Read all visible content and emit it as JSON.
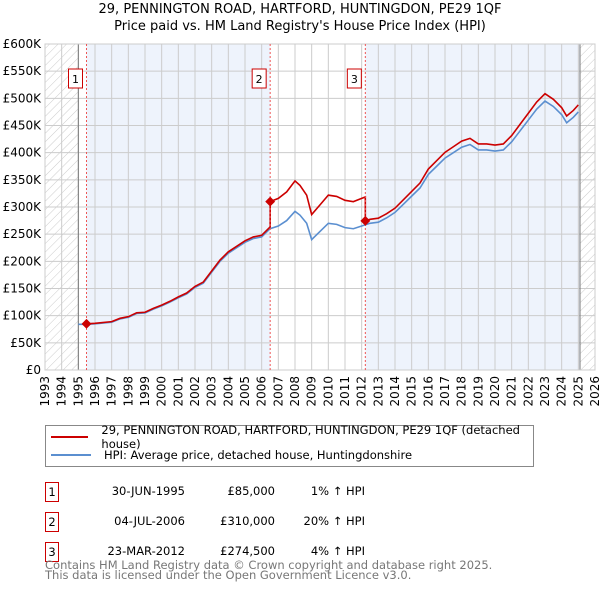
{
  "chart_data": {
    "type": "line",
    "title": "29, PENNINGTON ROAD, HARTFORD, HUNTINGDON, PE29 1QF",
    "subtitle": "Price paid vs. HM Land Registry's House Price Index (HPI)",
    "xlim": [
      1993,
      2026
    ],
    "ylim": [
      0,
      600000
    ],
    "x_ticks": [
      "1993",
      "1994",
      "1995",
      "1996",
      "1997",
      "1998",
      "1999",
      "2000",
      "2001",
      "2002",
      "2003",
      "2004",
      "2005",
      "2006",
      "2007",
      "2008",
      "2009",
      "2010",
      "2011",
      "2012",
      "2013",
      "2014",
      "2015",
      "2016",
      "2017",
      "2018",
      "2019",
      "2020",
      "2021",
      "2022",
      "2023",
      "2024",
      "2025",
      "2026"
    ],
    "y_ticks": [
      {
        "v": 0,
        "label": "£0"
      },
      {
        "v": 50000,
        "label": "£50K"
      },
      {
        "v": 100000,
        "label": "£100K"
      },
      {
        "v": 150000,
        "label": "£150K"
      },
      {
        "v": 200000,
        "label": "£200K"
      },
      {
        "v": 250000,
        "label": "£250K"
      },
      {
        "v": 300000,
        "label": "£300K"
      },
      {
        "v": 350000,
        "label": "£350K"
      },
      {
        "v": 400000,
        "label": "£400K"
      },
      {
        "v": 450000,
        "label": "£450K"
      },
      {
        "v": 500000,
        "label": "£500K"
      },
      {
        "v": 550000,
        "label": "£550K"
      },
      {
        "v": 600000,
        "label": "£600K"
      }
    ],
    "data_range": [
      1995,
      2025.1
    ],
    "colors": {
      "property": "#cc0000",
      "hpi": "#5b8fd0",
      "band": "#eef3fc",
      "grid": "#cccccc"
    },
    "hpi": {
      "x": [
        1995,
        1995.5,
        1996,
        1997,
        1997.5,
        1998,
        1998.5,
        1999,
        1999.5,
        2000,
        2000.5,
        2001,
        2001.5,
        2002,
        2002.5,
        2003,
        2003.5,
        2004,
        2004.5,
        2005,
        2005.5,
        2006,
        2006.5,
        2007,
        2007.5,
        2008,
        2008.3,
        2008.7,
        2009,
        2009.5,
        2010,
        2010.5,
        2011,
        2011.5,
        2012,
        2012.5,
        2013,
        2013.5,
        2014,
        2014.5,
        2015,
        2015.5,
        2016,
        2016.5,
        2017,
        2017.5,
        2018,
        2018.5,
        2019,
        2019.5,
        2020,
        2020.5,
        2021,
        2021.5,
        2022,
        2022.5,
        2023,
        2023.5,
        2024,
        2024.3,
        2024.7,
        2025
      ],
      "y": [
        84000,
        84000,
        85000,
        88000,
        94000,
        97000,
        104000,
        105000,
        112000,
        118000,
        125000,
        133000,
        140000,
        152000,
        160000,
        180000,
        200000,
        215000,
        225000,
        235000,
        242000,
        245000,
        260000,
        265000,
        275000,
        292000,
        285000,
        270000,
        240000,
        255000,
        270000,
        268000,
        262000,
        260000,
        265000,
        270000,
        272000,
        280000,
        290000,
        305000,
        320000,
        335000,
        360000,
        375000,
        390000,
        400000,
        410000,
        415000,
        405000,
        405000,
        403000,
        405000,
        420000,
        440000,
        460000,
        480000,
        495000,
        485000,
        470000,
        455000,
        465000,
        475000
      ]
    },
    "sales": [
      {
        "n": "1",
        "x": 1995.49,
        "date": "30-JUN-1995",
        "price": 85000,
        "price_label": "£85,000",
        "hpi": "1% ↑ HPI"
      },
      {
        "n": "2",
        "x": 2006.51,
        "date": "04-JUL-2006",
        "price": 310000,
        "price_label": "£310,000",
        "hpi": "20% ↑ HPI"
      },
      {
        "n": "3",
        "x": 2012.22,
        "date": "23-MAR-2012",
        "price": 274500,
        "price_label": "£274,500",
        "hpi": "4% ↑ HPI"
      }
    ],
    "legend": {
      "property": "29, PENNINGTON ROAD, HARTFORD, HUNTINGDON, PE29 1QF (detached house)",
      "hpi": "HPI: Average price, detached house, Huntingdonshire"
    }
  },
  "footer": [
    "Contains HM Land Registry data © Crown copyright and database right 2025.",
    "This data is licensed under the Open Government Licence v3.0."
  ]
}
